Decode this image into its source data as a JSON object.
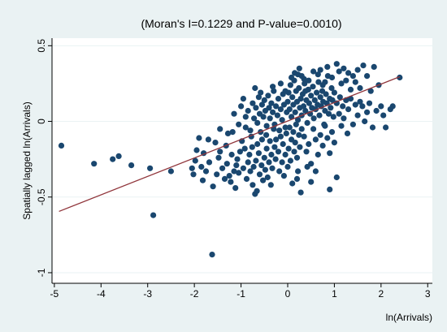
{
  "colors": {
    "outer_background": "#eaf2f3",
    "plot_background": "#ffffff",
    "marker": "#1a476f",
    "fit_line": "#90353b",
    "grid": "#eaf2f3",
    "axis": "#000000"
  },
  "chart_data": {
    "type": "scatter",
    "title": "(Moran's I=0.1229 and P-value=0.0010)",
    "xlabel": "ln(Arrivals)",
    "ylabel": "Spatially lagged ln(Arrivals)",
    "xlim": [
      -5.05,
      3.1
    ],
    "ylim": [
      -1.07,
      0.55
    ],
    "x_ticks": [
      -5,
      -4,
      -3,
      -2,
      -1,
      0,
      1,
      2,
      3
    ],
    "x_tick_labels": [
      "-5",
      "-4",
      "-3",
      "-2",
      "-1",
      "0",
      "1",
      "2",
      "3"
    ],
    "y_ticks": [
      -1,
      -0.5,
      0,
      0.5
    ],
    "y_tick_labels": [
      "-1",
      "-0.5",
      "0",
      "0.5"
    ],
    "grid": "horizontal",
    "legend": "none",
    "fit_line": {
      "x": [
        -4.9,
        2.4
      ],
      "y": [
        -0.595,
        0.295
      ]
    },
    "points": [
      [
        -4.85,
        -0.16
      ],
      [
        -4.15,
        -0.28
      ],
      [
        -3.75,
        -0.25
      ],
      [
        -3.62,
        -0.23
      ],
      [
        -3.35,
        -0.29
      ],
      [
        -2.95,
        -0.31
      ],
      [
        -2.88,
        -0.62
      ],
      [
        -2.5,
        -0.33
      ],
      [
        -1.62,
        -0.88
      ],
      [
        -2.05,
        -0.31
      ],
      [
        -2.02,
        -0.35
      ],
      [
        -1.98,
        -0.26
      ],
      [
        -1.95,
        -0.19
      ],
      [
        -1.9,
        -0.11
      ],
      [
        -1.85,
        -0.3
      ],
      [
        -1.82,
        -0.39
      ],
      [
        -1.8,
        -0.21
      ],
      [
        -1.75,
        -0.33
      ],
      [
        -1.7,
        -0.12
      ],
      [
        -1.68,
        -0.27
      ],
      [
        -1.6,
        -0.43
      ],
      [
        -1.55,
        -0.14
      ],
      [
        -1.52,
        -0.35
      ],
      [
        -1.48,
        -0.24
      ],
      [
        -1.45,
        -0.2
      ],
      [
        -1.4,
        -0.31
      ],
      [
        -1.35,
        -0.38
      ],
      [
        -1.32,
        -0.16
      ],
      [
        -1.3,
        -0.28
      ],
      [
        -1.25,
        -0.36
      ],
      [
        -1.22,
        -0.4
      ],
      [
        -1.2,
        -0.22
      ],
      [
        -1.18,
        -0.07
      ],
      [
        -1.15,
        -0.33
      ],
      [
        -1.12,
        -0.44
      ],
      [
        -1.1,
        -0.29
      ],
      [
        -1.08,
        -0.25
      ],
      [
        -1.05,
        -0.34
      ],
      [
        -1.02,
        -0.2
      ],
      [
        -0.98,
        -0.13
      ],
      [
        -0.95,
        -0.31
      ],
      [
        -0.92,
        -0.18
      ],
      [
        -0.9,
        -0.04
      ],
      [
        -0.88,
        -0.38
      ],
      [
        -0.85,
        -0.27
      ],
      [
        -0.82,
        -0.22
      ],
      [
        -0.8,
        -0.33
      ],
      [
        -0.78,
        -0.1
      ],
      [
        -0.76,
        -0.17
      ],
      [
        -0.75,
        -0.42
      ],
      [
        -0.73,
        -0.3
      ],
      [
        -0.7,
        -0.48
      ],
      [
        -0.68,
        -0.26
      ],
      [
        -0.66,
        -0.46
      ],
      [
        -0.65,
        -0.15
      ],
      [
        -0.62,
        -0.21
      ],
      [
        -0.6,
        -0.35
      ],
      [
        -0.58,
        -0.07
      ],
      [
        -0.56,
        -0.29
      ],
      [
        -0.55,
        -0.12
      ],
      [
        -0.53,
        -0.39
      ],
      [
        -0.5,
        -0.24
      ],
      [
        -0.48,
        -0.32
      ],
      [
        -0.46,
        -0.09
      ],
      [
        -0.45,
        -0.18
      ],
      [
        -0.43,
        -0.37
      ],
      [
        -0.4,
        -0.27
      ],
      [
        -0.38,
        -0.13
      ],
      [
        -0.36,
        -0.42
      ],
      [
        -0.35,
        -0.22
      ],
      [
        -0.33,
        -0.31
      ],
      [
        -0.3,
        -0.05
      ],
      [
        -0.28,
        -0.17
      ],
      [
        -0.26,
        -0.25
      ],
      [
        -1.45,
        -0.05
      ],
      [
        -1.28,
        -0.08
      ],
      [
        -1.15,
        0.05
      ],
      [
        -1.05,
        -0.02
      ],
      [
        -1.0,
        0.1
      ],
      [
        -0.95,
        0.15
      ],
      [
        -0.9,
        0.03
      ],
      [
        -0.85,
        0.07
      ],
      [
        -0.8,
        -0.06
      ],
      [
        -0.75,
        0.12
      ],
      [
        -0.72,
        0.02
      ],
      [
        -0.7,
        0.22
      ],
      [
        -0.68,
        0.09
      ],
      [
        -0.65,
        -0.01
      ],
      [
        -0.62,
        0.16
      ],
      [
        -0.6,
        0.05
      ],
      [
        -0.58,
        0.19
      ],
      [
        -0.55,
        0.11
      ],
      [
        -0.52,
        0.03
      ],
      [
        -0.5,
        0.14
      ],
      [
        -0.48,
        0.07
      ],
      [
        -0.45,
        -0.03
      ],
      [
        -0.42,
        0.17
      ],
      [
        -0.4,
        0.09
      ],
      [
        -0.38,
        0.02
      ],
      [
        -0.35,
        0.12
      ],
      [
        -0.32,
        0.06
      ],
      [
        -0.3,
        0.2
      ],
      [
        -0.28,
        -0.02
      ],
      [
        -0.25,
        0.1
      ],
      [
        -0.22,
        0.04
      ],
      [
        -0.2,
        0.15
      ],
      [
        -0.18,
        -0.06
      ],
      [
        -0.15,
        0.08
      ],
      [
        -0.12,
        0.01
      ],
      [
        -0.1,
        0.18
      ],
      [
        -0.08,
        0.11
      ],
      [
        -0.05,
        -0.04
      ],
      [
        -0.02,
        0.06
      ],
      [
        0.0,
        0.13
      ],
      [
        -0.25,
        -0.12
      ],
      [
        -0.2,
        -0.2
      ],
      [
        -0.18,
        -0.33
      ],
      [
        -0.15,
        -0.1
      ],
      [
        -0.12,
        -0.27
      ],
      [
        -0.1,
        -0.15
      ],
      [
        -0.08,
        -0.36
      ],
      [
        -0.05,
        -0.22
      ],
      [
        -0.03,
        -0.08
      ],
      [
        0.0,
        -0.3
      ],
      [
        0.02,
        -0.18
      ],
      [
        0.04,
        -0.04
      ],
      [
        0.06,
        -0.26
      ],
      [
        0.08,
        -0.12
      ],
      [
        0.1,
        -0.41
      ],
      [
        0.12,
        -0.07
      ],
      [
        0.14,
        -0.2
      ],
      [
        0.16,
        -0.14
      ],
      [
        0.18,
        -0.02
      ],
      [
        0.2,
        -0.24
      ],
      [
        0.22,
        -0.33
      ],
      [
        0.24,
        -0.09
      ],
      [
        0.26,
        -0.17
      ],
      [
        0.28,
        -0.47
      ],
      [
        0.3,
        -0.05
      ],
      [
        0.02,
        0.19
      ],
      [
        0.04,
        0.08
      ],
      [
        0.06,
        0.24
      ],
      [
        0.08,
        0.03
      ],
      [
        0.1,
        0.16
      ],
      [
        0.12,
        0.11
      ],
      [
        0.14,
        0.27
      ],
      [
        0.16,
        0.06
      ],
      [
        0.18,
        0.2
      ],
      [
        0.2,
        0.13
      ],
      [
        0.22,
        0.01
      ],
      [
        0.24,
        0.22
      ],
      [
        0.26,
        0.09
      ],
      [
        0.28,
        0.15
      ],
      [
        0.3,
        0.04
      ],
      [
        0.32,
        0.18
      ],
      [
        0.34,
        0.1
      ],
      [
        0.36,
        0.25
      ],
      [
        0.38,
        0.07
      ],
      [
        0.4,
        0.14
      ],
      [
        0.42,
        -0.01
      ],
      [
        0.44,
        0.21
      ],
      [
        0.46,
        0.12
      ],
      [
        0.48,
        0.05
      ],
      [
        0.5,
        0.17
      ],
      [
        0.52,
        0.09
      ],
      [
        0.54,
        0.23
      ],
      [
        0.56,
        0.02
      ],
      [
        0.58,
        0.14
      ],
      [
        0.6,
        0.08
      ],
      [
        0.62,
        0.19
      ],
      [
        0.64,
        0.11
      ],
      [
        0.66,
        0.26
      ],
      [
        0.68,
        0.04
      ],
      [
        0.7,
        0.16
      ],
      [
        0.72,
        0.1
      ],
      [
        0.74,
        0.2
      ],
      [
        0.76,
        0.13
      ],
      [
        0.78,
        -0.02
      ],
      [
        0.8,
        0.07
      ],
      [
        0.82,
        0.18
      ],
      [
        0.84,
        0.12
      ],
      [
        0.86,
        0.3
      ],
      [
        0.88,
        0.05
      ],
      [
        0.9,
        0.15
      ],
      [
        0.92,
        0.09
      ],
      [
        0.94,
        0.22
      ],
      [
        0.96,
        0.14
      ],
      [
        0.98,
        0.03
      ],
      [
        1.0,
        0.19
      ],
      [
        0.15,
        0.32
      ],
      [
        0.25,
        0.35
      ],
      [
        0.35,
        0.28
      ],
      [
        0.55,
        0.33
      ],
      [
        0.65,
        0.31
      ],
      [
        0.75,
        0.24
      ],
      [
        0.85,
        0.36
      ],
      [
        0.95,
        0.29
      ],
      [
        1.05,
        0.38
      ],
      [
        1.1,
        0.33
      ],
      [
        1.15,
        0.25
      ],
      [
        1.2,
        0.35
      ],
      [
        1.25,
        0.27
      ],
      [
        1.3,
        0.32
      ],
      [
        1.35,
        0.21
      ],
      [
        1.4,
        0.3
      ],
      [
        1.45,
        0.26
      ],
      [
        1.5,
        0.34
      ],
      [
        1.55,
        0.22
      ],
      [
        1.62,
        0.37
      ],
      [
        1.7,
        0.3
      ],
      [
        1.78,
        0.2
      ],
      [
        1.85,
        0.36
      ],
      [
        1.95,
        0.24
      ],
      [
        2.4,
        0.29
      ],
      [
        1.05,
        0.12
      ],
      [
        1.1,
        0.05
      ],
      [
        1.12,
        0.16
      ],
      [
        1.15,
        -0.03
      ],
      [
        1.18,
        0.1
      ],
      [
        1.2,
        0.02
      ],
      [
        1.25,
        0.14
      ],
      [
        1.28,
        -0.08
      ],
      [
        1.3,
        0.08
      ],
      [
        1.35,
        0.15
      ],
      [
        1.4,
        -0.02
      ],
      [
        1.45,
        0.11
      ],
      [
        1.5,
        0.04
      ],
      [
        1.55,
        0.13
      ],
      [
        1.6,
        0.1
      ],
      [
        1.65,
        0.0
      ],
      [
        1.7,
        0.06
      ],
      [
        1.75,
        0.12
      ],
      [
        1.82,
        -0.04
      ],
      [
        1.9,
        0.07
      ],
      [
        2.0,
        0.1
      ],
      [
        2.05,
        0.04
      ],
      [
        2.1,
        -0.04
      ],
      [
        2.2,
        0.08
      ],
      [
        2.25,
        0.1
      ],
      [
        0.35,
        -0.1
      ],
      [
        0.4,
        -0.2
      ],
      [
        0.45,
        -0.15
      ],
      [
        0.5,
        -0.28
      ],
      [
        0.55,
        -0.05
      ],
      [
        0.6,
        -0.12
      ],
      [
        0.65,
        -0.22
      ],
      [
        0.7,
        -0.09
      ],
      [
        0.75,
        -0.16
      ],
      [
        0.8,
        -0.03
      ],
      [
        0.85,
        -0.11
      ],
      [
        0.9,
        -0.21
      ],
      [
        0.95,
        -0.07
      ],
      [
        1.0,
        -0.14
      ],
      [
        1.05,
        -0.37
      ],
      [
        0.5,
        -0.4
      ],
      [
        0.6,
        -0.33
      ],
      [
        0.9,
        -0.45
      ],
      [
        0.2,
        -0.38
      ],
      [
        0.42,
        -0.3
      ],
      [
        0.3,
        0.3
      ],
      [
        0.45,
        0.27
      ],
      [
        0.7,
        0.34
      ],
      [
        0.8,
        0.26
      ],
      [
        0.38,
        0.2
      ],
      [
        -0.05,
        0.2
      ],
      [
        0.08,
        0.29
      ],
      [
        -0.32,
        0.23
      ],
      [
        -0.15,
        0.25
      ],
      [
        0.22,
        0.31
      ]
    ]
  }
}
